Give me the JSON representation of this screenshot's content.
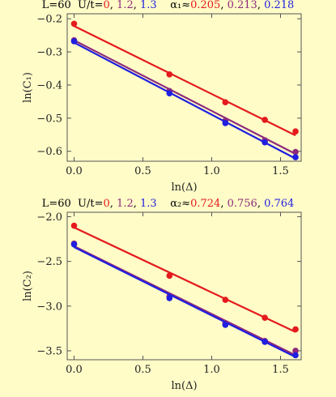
{
  "colors": {
    "series": [
      "#e41a1c",
      "#8e2a7a",
      "#1f1fe0"
    ],
    "plot_background": "#fffcc8",
    "frame": "#555555"
  },
  "chart_data": [
    {
      "type": "scatter",
      "title": {
        "prefix": "L=60  U/t=",
        "u_values": [
          "0",
          "1.2",
          "1.3"
        ],
        "alpha_label": "α₁≈",
        "alpha_values": [
          "0.205",
          "0.213",
          "0.218"
        ]
      },
      "xlabel": "ln(Δ)",
      "ylabel": "ln(C₁)",
      "xlim": [
        -0.05,
        1.65
      ],
      "ylim": [
        -0.63,
        -0.185
      ],
      "xticks": [
        0.0,
        0.5,
        1.0,
        1.5
      ],
      "xtick_labels": [
        "0.0",
        "0.5",
        "1.0",
        "1.5"
      ],
      "yticks": [
        -0.2,
        -0.3,
        -0.4,
        -0.5,
        -0.6
      ],
      "ytick_labels": [
        "−0.2",
        "−0.3",
        "−0.4",
        "−0.5",
        "−0.6"
      ],
      "grid": false,
      "series": [
        {
          "x": [
            0.0,
            0.693,
            1.099,
            1.386,
            1.609
          ],
          "y": [
            -0.215,
            -0.368,
            -0.452,
            -0.505,
            -0.54
          ],
          "fit": [
            [
              0.0,
              -0.222
            ],
            [
              1.609,
              -0.552
            ]
          ]
        },
        {
          "x": [
            0.0,
            0.693,
            1.099,
            1.386,
            1.609
          ],
          "y": [
            -0.265,
            -0.418,
            -0.508,
            -0.567,
            -0.602
          ],
          "fit": [
            [
              0.0,
              -0.265
            ],
            [
              1.609,
              -0.608
            ]
          ]
        },
        {
          "x": [
            0.0,
            0.693,
            1.099,
            1.386,
            1.609
          ],
          "y": [
            -0.268,
            -0.425,
            -0.515,
            -0.573,
            -0.618
          ],
          "fit": [
            [
              0.0,
              -0.272
            ],
            [
              1.609,
              -0.622
            ]
          ]
        }
      ]
    },
    {
      "type": "scatter",
      "title": {
        "prefix": "L=60  U/t=",
        "u_values": [
          "0",
          "1.2",
          "1.3"
        ],
        "alpha_label": "α₂≈",
        "alpha_values": [
          "0.724",
          "0.756",
          "0.764"
        ]
      },
      "xlabel": "ln(Δ)",
      "ylabel": "ln(C₂)",
      "xlim": [
        -0.05,
        1.65
      ],
      "ylim": [
        -3.6,
        -1.95
      ],
      "xticks": [
        0.0,
        0.5,
        1.0,
        1.5
      ],
      "xtick_labels": [
        "0.0",
        "0.5",
        "1.0",
        "1.5"
      ],
      "yticks": [
        -2.0,
        -2.5,
        -3.0,
        -3.5
      ],
      "ytick_labels": [
        "−2.0",
        "−2.5",
        "−3.0",
        "−3.5"
      ],
      "grid": false,
      "series": [
        {
          "x": [
            0.0,
            0.693,
            1.099,
            1.386,
            1.609
          ],
          "y": [
            -2.1,
            -2.66,
            -2.93,
            -3.13,
            -3.26
          ],
          "fit": [
            [
              0.0,
              -2.12
            ],
            [
              1.609,
              -3.29
            ]
          ]
        },
        {
          "x": [
            0.0,
            0.693,
            1.099,
            1.386,
            1.609
          ],
          "y": [
            -2.3,
            -2.89,
            -3.19,
            -3.39,
            -3.5
          ],
          "fit": [
            [
              0.0,
              -2.33
            ],
            [
              1.609,
              -3.55
            ]
          ]
        },
        {
          "x": [
            0.0,
            0.693,
            1.099,
            1.386,
            1.609
          ],
          "y": [
            -2.31,
            -2.91,
            -3.21,
            -3.4,
            -3.55
          ],
          "fit": [
            [
              0.0,
              -2.34
            ],
            [
              1.609,
              -3.57
            ]
          ]
        }
      ]
    }
  ]
}
